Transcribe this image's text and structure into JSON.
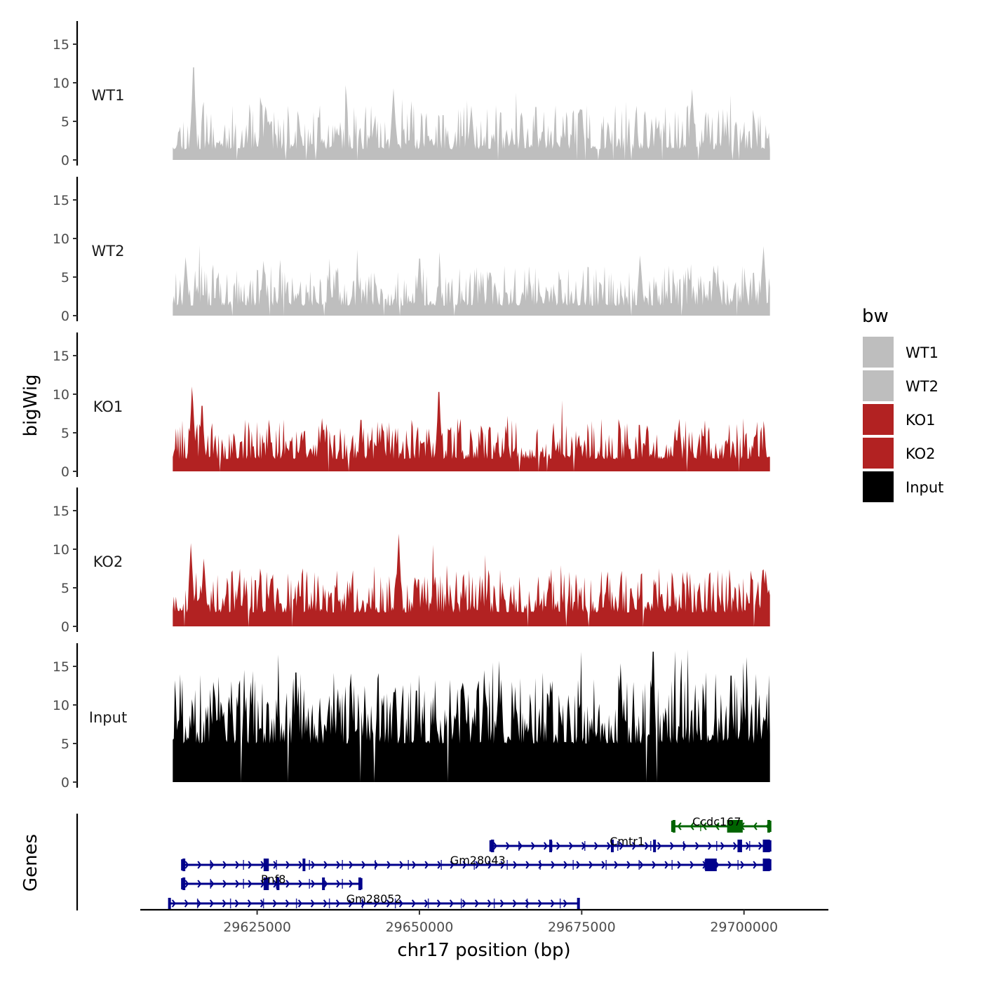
{
  "chart_data": {
    "type": "area",
    "title": "",
    "xlabel": "chr17 position (bp)",
    "ylabel": "bigWig",
    "genes_label": "Genes",
    "xlim": [
      29607000,
      29713000
    ],
    "ylim": [
      0,
      18
    ],
    "xticks": [
      29625000,
      29650000,
      29675000,
      29700000
    ],
    "xtick_labels": [
      "29625000",
      "29650000",
      "29675000",
      "29700000"
    ],
    "yticks": [
      0,
      5,
      10,
      15
    ],
    "ytick_labels": [
      "0",
      "5",
      "10",
      "15"
    ],
    "x_start": 29612000,
    "x_end": 29704000,
    "legend": {
      "title": "bw",
      "entries": [
        {
          "label": "WT1",
          "color": "#bebebe"
        },
        {
          "label": "WT2",
          "color": "#bebebe"
        },
        {
          "label": "KO1",
          "color": "#b22222"
        },
        {
          "label": "KO2",
          "color": "#b22222"
        },
        {
          "label": "Input",
          "color": "#000000"
        }
      ]
    },
    "series": [
      {
        "name": "WT1",
        "color": "#bebebe",
        "base": 1.4,
        "amp": 2.6,
        "seed": 11,
        "peaks": [
          [
            29615200,
            12.0
          ],
          [
            29646000,
            9.3
          ],
          [
            29692000,
            9.2
          ],
          [
            29658000,
            7.0
          ],
          [
            29675000,
            6.5
          ]
        ]
      },
      {
        "name": "WT2",
        "color": "#bebebe",
        "base": 1.3,
        "amp": 2.4,
        "seed": 23,
        "peaks": [
          [
            29614000,
            7.6
          ],
          [
            29626000,
            7.1
          ],
          [
            29650000,
            7.4
          ],
          [
            29703000,
            9.0
          ],
          [
            29684000,
            7.8
          ]
        ]
      },
      {
        "name": "KO1",
        "color": "#b22222",
        "base": 1.6,
        "amp": 2.4,
        "seed": 37,
        "peaks": [
          [
            29615000,
            11.0
          ],
          [
            29616500,
            8.5
          ],
          [
            29653000,
            10.3
          ],
          [
            29635000,
            6.9
          ],
          [
            29690000,
            6.8
          ]
        ]
      },
      {
        "name": "KO2",
        "color": "#b22222",
        "base": 1.8,
        "amp": 2.6,
        "seed": 53,
        "peaks": [
          [
            29614800,
            10.8
          ],
          [
            29646800,
            12.0
          ],
          [
            29616800,
            8.8
          ],
          [
            29703000,
            7.4
          ],
          [
            29670000,
            6.6
          ]
        ]
      },
      {
        "name": "Input",
        "color": "#000000",
        "base": 5.0,
        "amp": 4.2,
        "seed": 71,
        "peaks": [
          [
            29631000,
            14.2
          ],
          [
            29660000,
            14.5
          ],
          [
            29686000,
            16.9
          ],
          [
            29681000,
            15.4
          ],
          [
            29698000,
            13.8
          ]
        ]
      }
    ],
    "genes": [
      {
        "name": "Ccdc167",
        "start": 29689000,
        "end": 29704000,
        "strand": "-",
        "color": "#006400",
        "row": 0,
        "exons": [
          [
            29689000,
            29689400
          ],
          [
            29697400,
            29699800
          ],
          [
            29703600,
            29704000
          ]
        ]
      },
      {
        "name": "Cmtr1",
        "start": 29661000,
        "end": 29704000,
        "strand": "+",
        "color": "#00008b",
        "row": 1,
        "exons": [
          [
            29661000,
            29661500
          ],
          [
            29670000,
            29670200
          ],
          [
            29679500,
            29679700
          ],
          [
            29686000,
            29686300
          ],
          [
            29699000,
            29699700
          ],
          [
            29702900,
            29704000
          ]
        ]
      },
      {
        "name": "Gm28043",
        "start": 29613500,
        "end": 29704000,
        "strand": "+",
        "color": "#00008b",
        "row": 2,
        "exons": [
          [
            29613500,
            29613900
          ],
          [
            29626000,
            29626800
          ],
          [
            29632000,
            29632200
          ],
          [
            29694000,
            29695800
          ],
          [
            29702900,
            29704000
          ]
        ]
      },
      {
        "name": "Pnf8",
        "start": 29613500,
        "end": 29641000,
        "strand": "+",
        "color": "#00008b",
        "row": 3,
        "exons": [
          [
            29613500,
            29613900
          ],
          [
            29626000,
            29626800
          ],
          [
            29628000,
            29628200
          ],
          [
            29635000,
            29635200
          ],
          [
            29640600,
            29641000
          ]
        ]
      },
      {
        "name": "Gm28052",
        "start": 29611500,
        "end": 29674500,
        "strand": "+",
        "color": "#00008b",
        "row": 4,
        "exons": []
      }
    ]
  }
}
